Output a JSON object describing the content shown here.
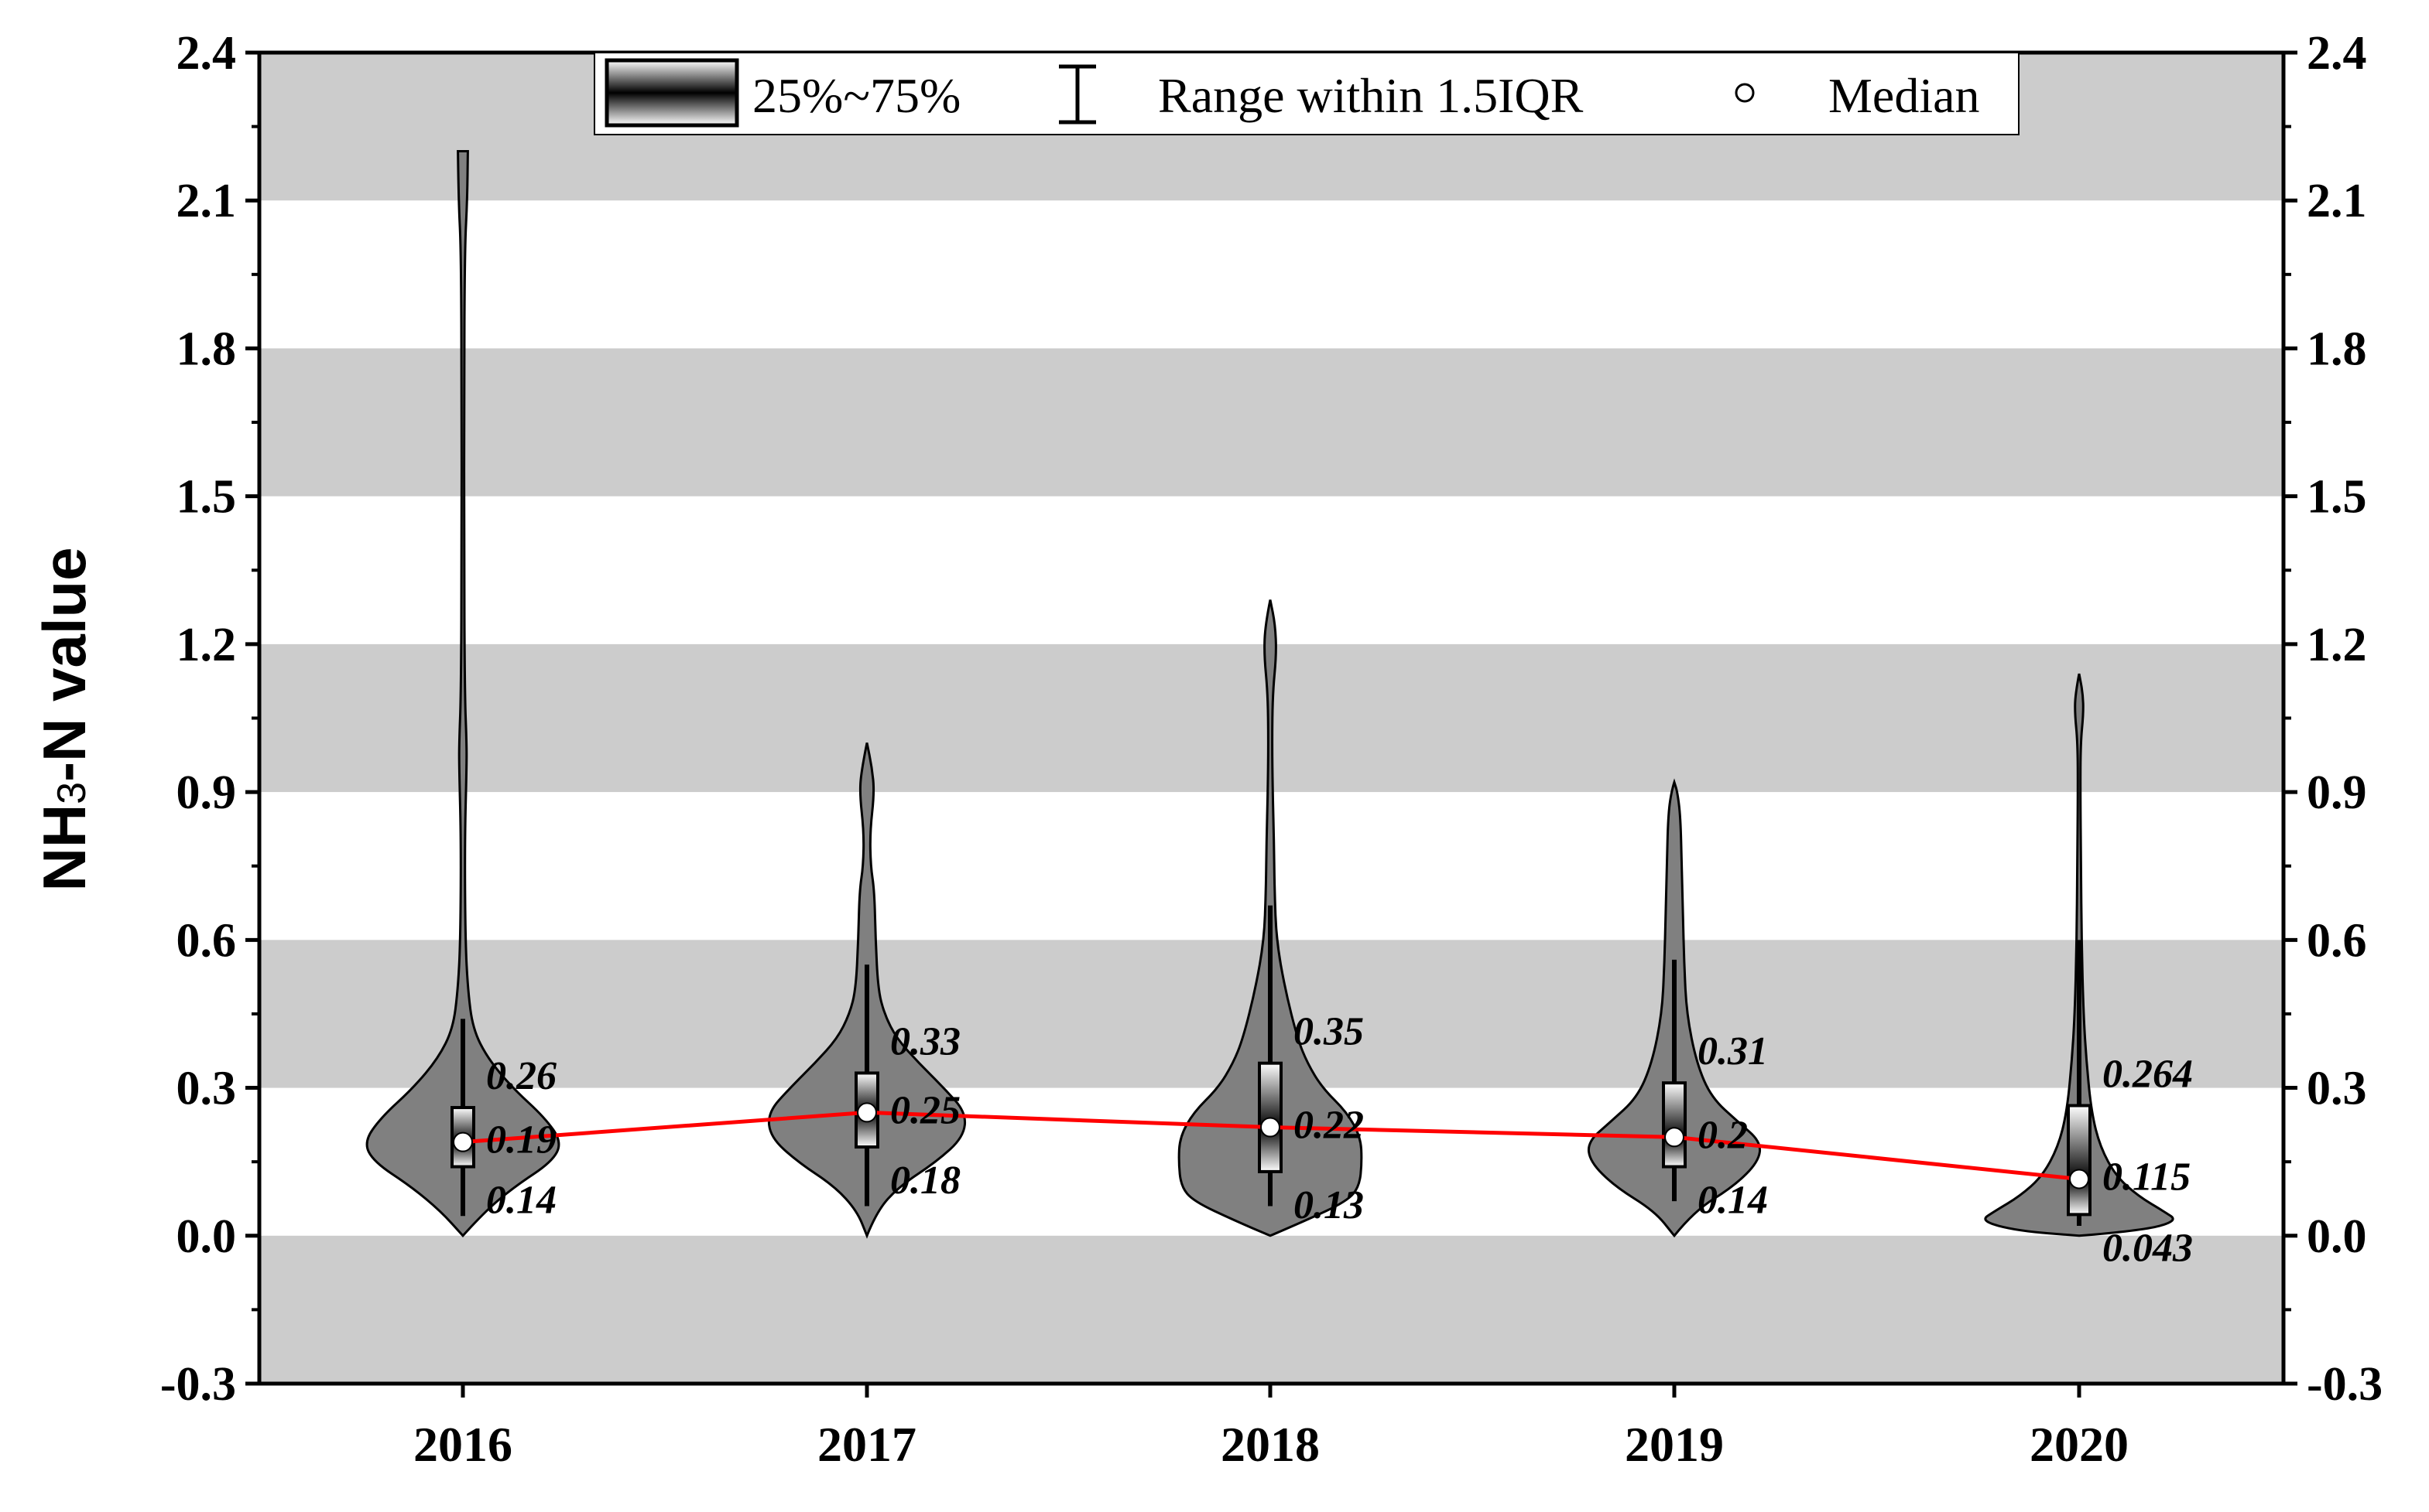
{
  "chart_data": {
    "type": "violin",
    "title": "",
    "xlabel": "",
    "ylabel": "NH3-N value",
    "ylabel_main": "NH",
    "ylabel_sub": "3",
    "ylabel_rest": "-N value",
    "ylim": [
      -0.3,
      2.4
    ],
    "yticks": [
      "-0.3",
      "0.0",
      "0.3",
      "0.6",
      "0.9",
      "1.2",
      "1.5",
      "1.8",
      "2.1",
      "2.4"
    ],
    "ytick_values": [
      -0.3,
      0.0,
      0.3,
      0.6,
      0.9,
      1.2,
      1.5,
      1.8,
      2.1,
      2.4
    ],
    "grid_bands": [
      [
        -0.3,
        0.0
      ],
      [
        0.3,
        0.6
      ],
      [
        0.9,
        1.2
      ],
      [
        1.5,
        1.8
      ],
      [
        2.1,
        2.4
      ]
    ],
    "categories": [
      "2016",
      "2017",
      "2018",
      "2019",
      "2020"
    ],
    "series": [
      {
        "name": "2016",
        "q1": 0.14,
        "median": 0.19,
        "q3": 0.26,
        "q1_label": "0.14",
        "median_label": "0.19",
        "q3_label": "0.26",
        "whisker_low": 0.04,
        "whisker_high": 0.44,
        "violin": [
          [
            0.0,
            0.0
          ],
          [
            0.05,
            0.18
          ],
          [
            0.1,
            0.42
          ],
          [
            0.15,
            0.72
          ],
          [
            0.19,
            0.8
          ],
          [
            0.24,
            0.66
          ],
          [
            0.3,
            0.4
          ],
          [
            0.36,
            0.2
          ],
          [
            0.42,
            0.08
          ],
          [
            0.5,
            0.04
          ],
          [
            0.6,
            0.02
          ],
          [
            0.8,
            0.015
          ],
          [
            0.95,
            0.03
          ],
          [
            1.0,
            0.03
          ],
          [
            1.1,
            0.015
          ],
          [
            1.4,
            0.01
          ],
          [
            1.7,
            0.01
          ],
          [
            2.0,
            0.015
          ],
          [
            2.1,
            0.035
          ],
          [
            2.2,
            0.04
          ]
        ],
        "violin_flat_top": true
      },
      {
        "name": "2017",
        "q1": 0.18,
        "median": 0.25,
        "q3": 0.33,
        "q1_label": "0.18",
        "median_label": "0.25",
        "q3_label": "0.33",
        "whisker_low": 0.06,
        "whisker_high": 0.55,
        "violin": [
          [
            0.0,
            0.0
          ],
          [
            0.05,
            0.08
          ],
          [
            0.1,
            0.26
          ],
          [
            0.15,
            0.56
          ],
          [
            0.2,
            0.78
          ],
          [
            0.25,
            0.8
          ],
          [
            0.3,
            0.62
          ],
          [
            0.35,
            0.42
          ],
          [
            0.4,
            0.24
          ],
          [
            0.45,
            0.14
          ],
          [
            0.5,
            0.09
          ],
          [
            0.6,
            0.07
          ],
          [
            0.7,
            0.06
          ],
          [
            0.75,
            0.03
          ],
          [
            0.82,
            0.025
          ],
          [
            0.9,
            0.06
          ],
          [
            0.95,
            0.04
          ],
          [
            1.0,
            0.0
          ]
        ]
      },
      {
        "name": "2018",
        "q1": 0.13,
        "median": 0.22,
        "q3": 0.35,
        "q1_label": "0.13",
        "median_label": "0.22",
        "q3_label": "0.35",
        "whisker_low": 0.06,
        "whisker_high": 0.67,
        "violin": [
          [
            0.0,
            0.0
          ],
          [
            0.03,
            0.28
          ],
          [
            0.07,
            0.62
          ],
          [
            0.1,
            0.72
          ],
          [
            0.15,
            0.74
          ],
          [
            0.2,
            0.73
          ],
          [
            0.25,
            0.62
          ],
          [
            0.3,
            0.42
          ],
          [
            0.35,
            0.3
          ],
          [
            0.4,
            0.22
          ],
          [
            0.5,
            0.12
          ],
          [
            0.6,
            0.05
          ],
          [
            0.7,
            0.035
          ],
          [
            0.8,
            0.03
          ],
          [
            0.9,
            0.02
          ],
          [
            1.0,
            0.015
          ],
          [
            1.1,
            0.02
          ],
          [
            1.18,
            0.05
          ],
          [
            1.24,
            0.04
          ],
          [
            1.29,
            0.0
          ]
        ]
      },
      {
        "name": "2019",
        "q1": 0.14,
        "median": 0.2,
        "q3": 0.31,
        "q1_label": "0.14",
        "median_label": "0.2",
        "q3_label": "0.31",
        "whisker_low": 0.07,
        "whisker_high": 0.56,
        "violin": [
          [
            0.0,
            0.0
          ],
          [
            0.05,
            0.16
          ],
          [
            0.1,
            0.48
          ],
          [
            0.15,
            0.68
          ],
          [
            0.19,
            0.7
          ],
          [
            0.23,
            0.52
          ],
          [
            0.28,
            0.3
          ],
          [
            0.35,
            0.18
          ],
          [
            0.45,
            0.1
          ],
          [
            0.55,
            0.08
          ],
          [
            0.65,
            0.07
          ],
          [
            0.75,
            0.06
          ],
          [
            0.85,
            0.05
          ],
          [
            0.9,
            0.025
          ],
          [
            0.92,
            0.0
          ]
        ]
      },
      {
        "name": "2020",
        "q1": 0.043,
        "median": 0.115,
        "q3": 0.264,
        "q1_label": "0.043",
        "median_label": "0.115",
        "q3_label": "0.264",
        "whisker_low": 0.02,
        "whisker_high": 0.6,
        "violin": [
          [
            0.0,
            0.0
          ],
          [
            0.01,
            0.5
          ],
          [
            0.03,
            0.8
          ],
          [
            0.05,
            0.68
          ],
          [
            0.08,
            0.48
          ],
          [
            0.12,
            0.3
          ],
          [
            0.18,
            0.17
          ],
          [
            0.25,
            0.1
          ],
          [
            0.35,
            0.06
          ],
          [
            0.45,
            0.035
          ],
          [
            0.6,
            0.02
          ],
          [
            0.75,
            0.015
          ],
          [
            0.9,
            0.01
          ],
          [
            1.0,
            0.012
          ],
          [
            1.06,
            0.035
          ],
          [
            1.1,
            0.03
          ],
          [
            1.14,
            0.0
          ]
        ]
      }
    ],
    "median_line": {
      "color": "#ff0000",
      "values": [
        0.19,
        0.25,
        0.22,
        0.2,
        0.115
      ]
    },
    "legend": {
      "position": "top-center",
      "items": [
        {
          "label": "25%~75%",
          "icon": "gradient-box-icon"
        },
        {
          "label": "Range within 1.5IQR",
          "icon": "whisker-range-icon"
        },
        {
          "label": "Median",
          "icon": "median-circle-icon"
        }
      ]
    },
    "colors": {
      "violin_fill": "#808080",
      "band_fill": "#cccccc",
      "median_line": "#ff0000",
      "box_edge": "#000000"
    }
  }
}
